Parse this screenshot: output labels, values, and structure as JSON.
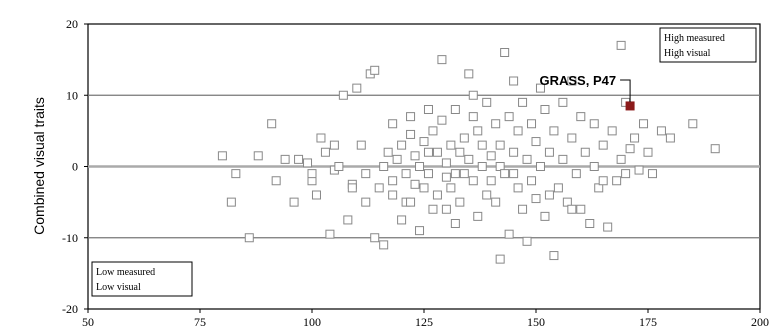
{
  "chart_data": {
    "type": "scatter",
    "title": "",
    "xlabel": "",
    "ylabel": "Combined visual traits",
    "xlim": [
      50,
      200
    ],
    "ylim": [
      -20,
      20
    ],
    "xticks": [
      50,
      75,
      100,
      125,
      150,
      175,
      200
    ],
    "yticks": [
      -20,
      -10,
      0,
      10,
      20
    ],
    "reference_lines": [
      -10,
      0,
      10
    ],
    "legend_top_right": {
      "lines": [
        "High measured",
        "High visual"
      ]
    },
    "legend_bottom_left": {
      "lines": [
        "Low measured",
        "Low visual"
      ]
    },
    "annotation": {
      "text": "GRASS, P47",
      "x": 171,
      "y": 8.5
    },
    "highlight_color": "#8b1a1a",
    "marker_color": "#888888",
    "series": [
      {
        "points": [
          [
            80,
            1.5
          ],
          [
            82,
            -5
          ],
          [
            83,
            -1
          ],
          [
            86,
            -10
          ],
          [
            88,
            1.5
          ],
          [
            91,
            6
          ],
          [
            92,
            -2
          ],
          [
            94,
            1
          ],
          [
            96,
            -5
          ],
          [
            99,
            0.5
          ],
          [
            100,
            -2
          ],
          [
            101,
            -4
          ],
          [
            102,
            4
          ],
          [
            103,
            2
          ],
          [
            104,
            -9.5
          ],
          [
            105,
            -0.5
          ],
          [
            106,
            0
          ],
          [
            107,
            10
          ],
          [
            108,
            -7.5
          ],
          [
            109,
            -2.5
          ],
          [
            110,
            11
          ],
          [
            111,
            3
          ],
          [
            112,
            -1
          ],
          [
            113,
            13
          ],
          [
            114,
            13.5
          ],
          [
            114,
            -10
          ],
          [
            115,
            -3
          ],
          [
            116,
            0
          ],
          [
            116,
            -11
          ],
          [
            117,
            2
          ],
          [
            118,
            -2
          ],
          [
            118,
            -4
          ],
          [
            119,
            1
          ],
          [
            120,
            3
          ],
          [
            120,
            -7.5
          ],
          [
            121,
            -1
          ],
          [
            121,
            -5
          ],
          [
            122,
            4.5
          ],
          [
            122,
            7
          ],
          [
            123,
            -2.5
          ],
          [
            123,
            1.5
          ],
          [
            124,
            -9
          ],
          [
            124,
            0
          ],
          [
            125,
            3.5
          ],
          [
            125,
            -3
          ],
          [
            126,
            8
          ],
          [
            126,
            -1
          ],
          [
            127,
            5
          ],
          [
            127,
            -6
          ],
          [
            128,
            -4
          ],
          [
            128,
            2
          ],
          [
            129,
            15
          ],
          [
            129,
            6.5
          ],
          [
            130,
            -1.5
          ],
          [
            130,
            0.5
          ],
          [
            131,
            3
          ],
          [
            131,
            -3
          ],
          [
            132,
            8
          ],
          [
            132,
            -8
          ],
          [
            133,
            2
          ],
          [
            133,
            -5
          ],
          [
            134,
            -1
          ],
          [
            134,
            4
          ],
          [
            135,
            13
          ],
          [
            135,
            1
          ],
          [
            136,
            7
          ],
          [
            136,
            -2
          ],
          [
            137,
            5
          ],
          [
            137,
            -7
          ],
          [
            138,
            0
          ],
          [
            138,
            3
          ],
          [
            139,
            -4
          ],
          [
            139,
            9
          ],
          [
            140,
            1.5
          ],
          [
            140,
            -2
          ],
          [
            141,
            6
          ],
          [
            141,
            -5
          ],
          [
            142,
            3
          ],
          [
            142,
            0
          ],
          [
            143,
            16
          ],
          [
            143,
            -1
          ],
          [
            144,
            7
          ],
          [
            144,
            -9.5
          ],
          [
            145,
            12
          ],
          [
            145,
            2
          ],
          [
            146,
            -3
          ],
          [
            146,
            5
          ],
          [
            147,
            9
          ],
          [
            147,
            -6
          ],
          [
            148,
            -10.5
          ],
          [
            148,
            1
          ],
          [
            149,
            6
          ],
          [
            149,
            -2
          ],
          [
            150,
            3.5
          ],
          [
            150,
            -4.5
          ],
          [
            151,
            11
          ],
          [
            151,
            0
          ],
          [
            152,
            8
          ],
          [
            152,
            -7
          ],
          [
            153,
            2
          ],
          [
            154,
            -12.5
          ],
          [
            154,
            5
          ],
          [
            155,
            -3
          ],
          [
            156,
            9
          ],
          [
            156,
            1
          ],
          [
            157,
            -5
          ],
          [
            158,
            12
          ],
          [
            158,
            4
          ],
          [
            159,
            -1
          ],
          [
            160,
            7
          ],
          [
            160,
            -6
          ],
          [
            161,
            2
          ],
          [
            162,
            -8
          ],
          [
            163,
            6
          ],
          [
            163,
            0
          ],
          [
            164,
            -3
          ],
          [
            165,
            3
          ],
          [
            166,
            -8.5
          ],
          [
            167,
            5
          ],
          [
            168,
            -2
          ],
          [
            169,
            17
          ],
          [
            169,
            1
          ],
          [
            170,
            9
          ],
          [
            170,
            -1
          ],
          [
            172,
            4
          ],
          [
            173,
            -0.5
          ],
          [
            174,
            6
          ],
          [
            175,
            2
          ],
          [
            176,
            -1
          ],
          [
            178,
            5
          ],
          [
            180,
            4
          ],
          [
            185,
            6
          ],
          [
            190,
            2.5
          ],
          [
            142,
            -13
          ],
          [
            130,
            -6
          ],
          [
            136,
            10
          ],
          [
            126,
            2
          ],
          [
            118,
            6
          ],
          [
            112,
            -5
          ],
          [
            100,
            -1
          ],
          [
            97,
            1
          ],
          [
            105,
            3
          ],
          [
            109,
            -3
          ],
          [
            122,
            -5
          ],
          [
            132,
            -1
          ],
          [
            145,
            -1
          ],
          [
            153,
            -4
          ],
          [
            165,
            -2
          ],
          [
            171,
            2.5
          ],
          [
            158,
            -6
          ]
        ]
      }
    ]
  }
}
